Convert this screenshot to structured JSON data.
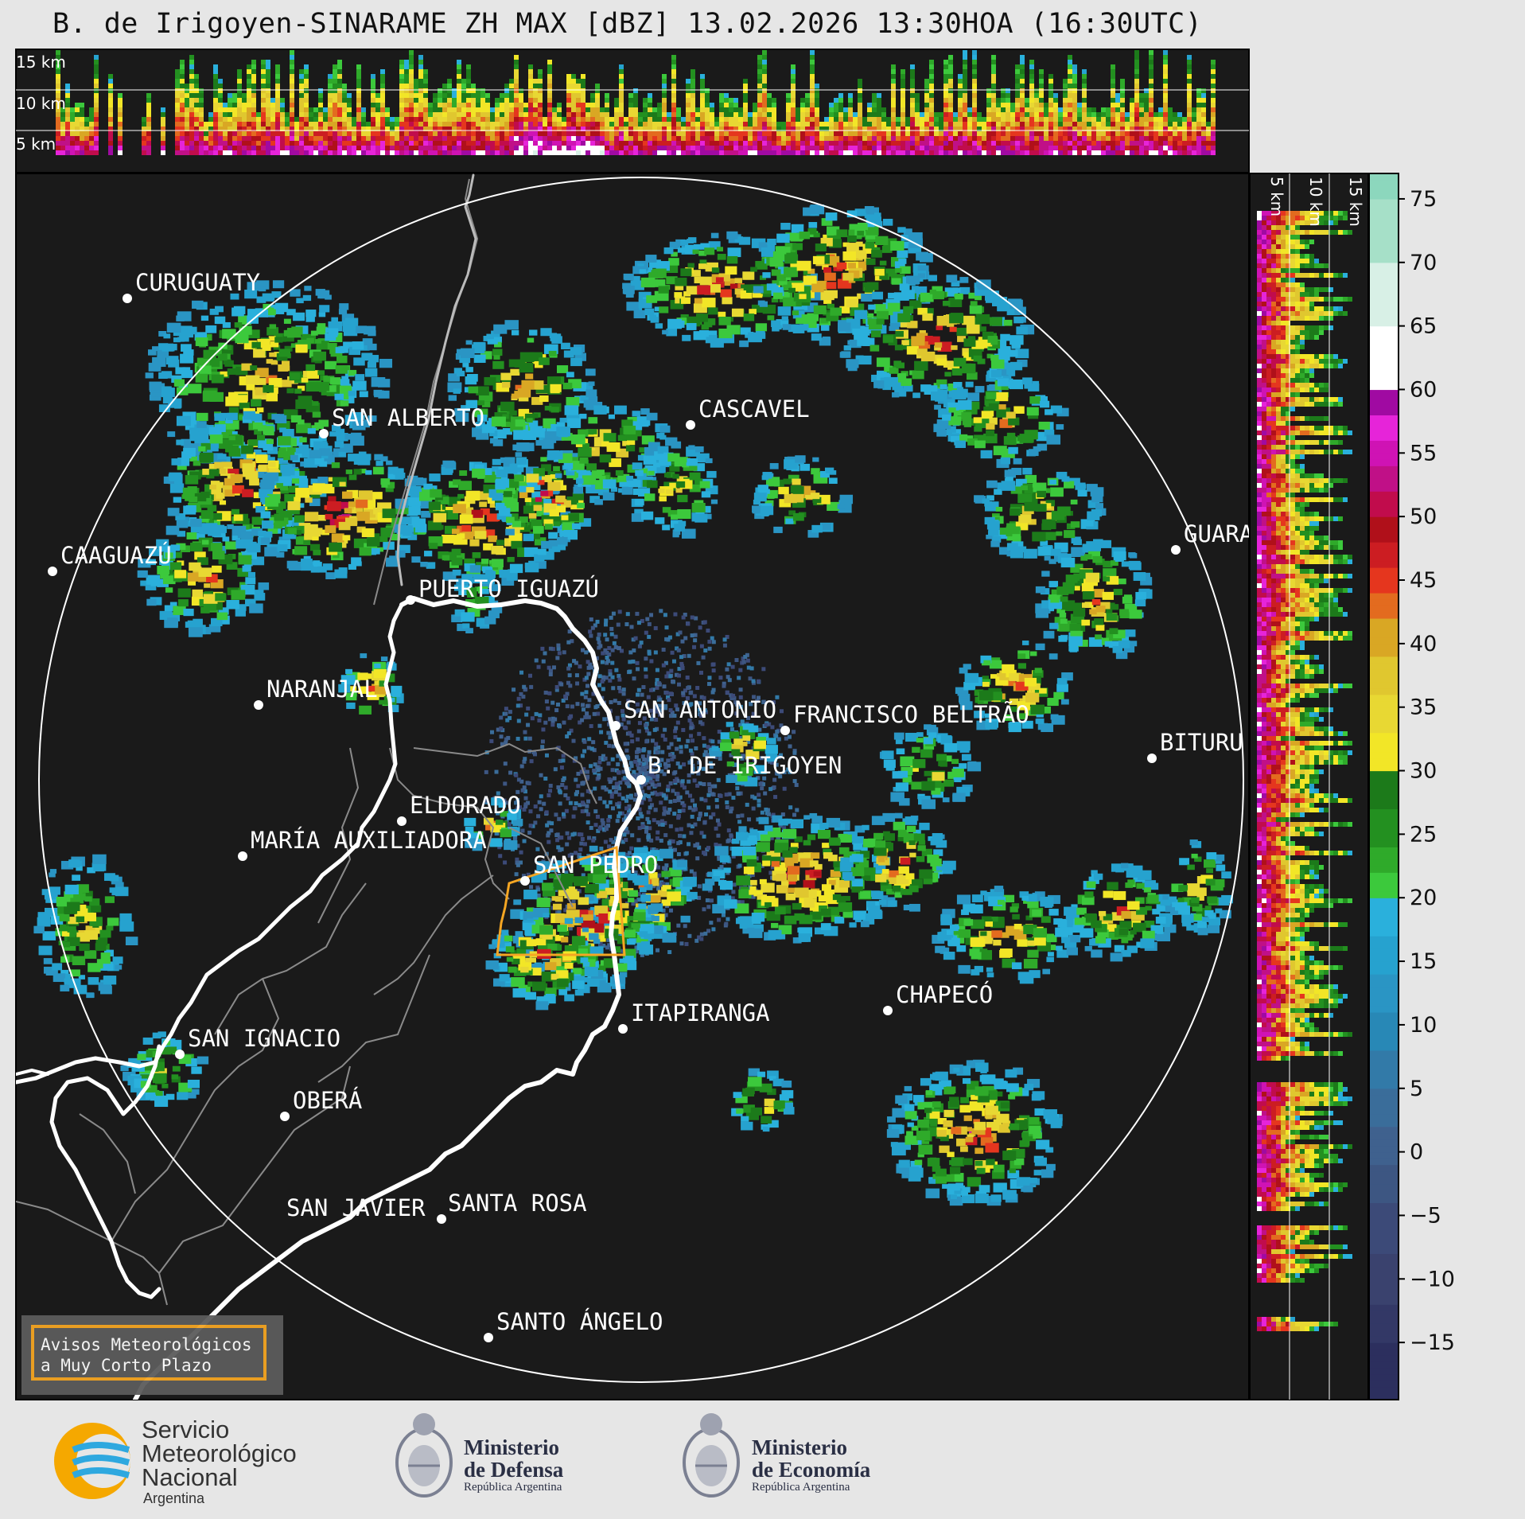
{
  "title": "B. de Irigoyen-SINARAME ZH MAX [dBZ] 13.02.2026 13:30HOA (16:30UTC)",
  "top_profile": {
    "altitude_labels": [
      "15 km",
      "10 km",
      "5 km"
    ]
  },
  "side_profile": {
    "altitude_labels": [
      "5 km",
      "10 km",
      "15 km"
    ]
  },
  "colorbar": {
    "unit": "dBZ",
    "ticks": [
      "75",
      "70",
      "65",
      "60",
      "55",
      "50",
      "45",
      "40",
      "35",
      "30",
      "25",
      "20",
      "15",
      "10",
      "5",
      "0",
      "−5",
      "−10",
      "−15"
    ]
  },
  "cities": [
    {
      "id": "curuguaty",
      "name": "CURUGUATY"
    },
    {
      "id": "san-alberto",
      "name": "SAN ALBERTO"
    },
    {
      "id": "cascavel",
      "name": "CASCAVEL"
    },
    {
      "id": "caaguazu",
      "name": "CAAGUAZÚ"
    },
    {
      "id": "guara",
      "name": "GUARA"
    },
    {
      "id": "puerto-iguazu",
      "name": "PUERTO IGUAZÚ"
    },
    {
      "id": "naranjal",
      "name": "NARANJAL"
    },
    {
      "id": "san-antonio",
      "name": "SAN ANTONIO"
    },
    {
      "id": "francisco-beltrao",
      "name": "FRANCISCO BELTRÃO"
    },
    {
      "id": "bituru",
      "name": "BITURU"
    },
    {
      "id": "b-de-irigoyen",
      "name": "B. DE IRIGOYEN"
    },
    {
      "id": "eldorado",
      "name": "ELDORADO"
    },
    {
      "id": "maria-auxiliadora",
      "name": "MARÍA AUXILIADORA"
    },
    {
      "id": "san-pedro",
      "name": "SAN PEDRO"
    },
    {
      "id": "itapiranga",
      "name": "ITAPIRANGA"
    },
    {
      "id": "chapeco",
      "name": "CHAPECÓ"
    },
    {
      "id": "san-ignacio",
      "name": "SAN IGNACIO"
    },
    {
      "id": "obera",
      "name": "OBERÁ"
    },
    {
      "id": "san-javier",
      "name": "SAN JAVIER"
    },
    {
      "id": "santa-rosa",
      "name": "SANTA ROSA"
    },
    {
      "id": "santo-angelo",
      "name": "SANTO ÁNGELO"
    }
  ],
  "warning_box": {
    "line1": "Avisos Meteorológicos",
    "line2": "a Muy Corto Plazo"
  },
  "logos": {
    "smn": {
      "line1": "Servicio",
      "line2": "Meteorológico",
      "line3": "Nacional",
      "sub": "Argentina"
    },
    "defensa": {
      "line1": "Ministerio",
      "line2": "de Defensa",
      "sub": "República Argentina"
    },
    "economia": {
      "line1": "Ministerio",
      "line2": "de Economía",
      "sub": "República Argentina"
    }
  },
  "colors": {
    "background": "#e6e6e6",
    "map_bg": "#1a1a1a",
    "warning_border": "#f5a623"
  }
}
